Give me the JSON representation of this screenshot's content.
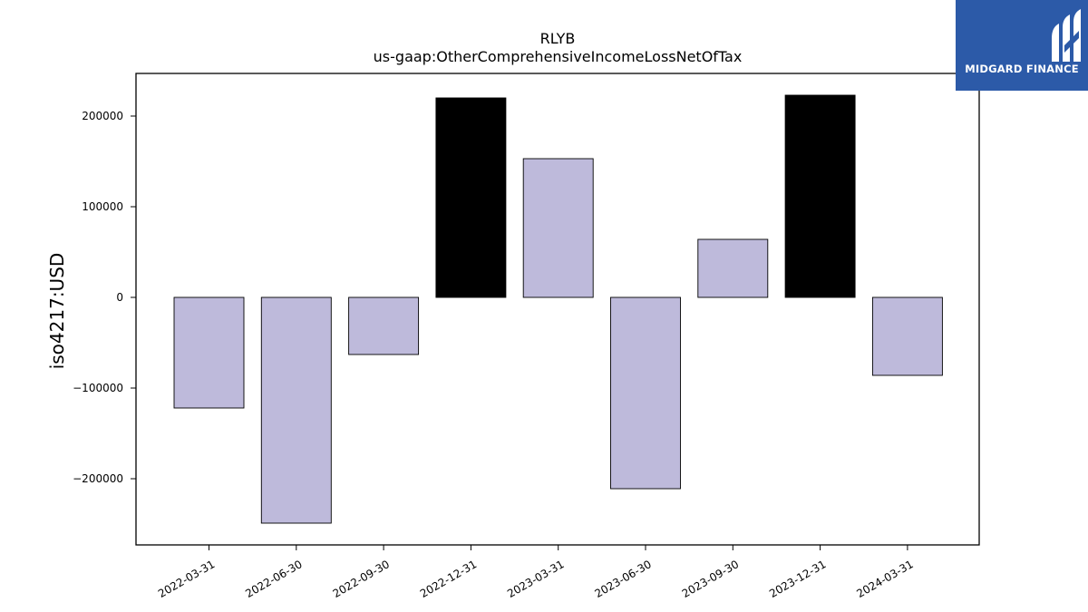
{
  "chart_data": {
    "type": "bar",
    "title": "RLYB",
    "subtitle": "us-gaap:OtherComprehensiveIncomeLossNetOfTax",
    "xlabel": "",
    "ylabel": "iso4217:USD",
    "categories": [
      "2022-03-31",
      "2022-06-30",
      "2022-09-30",
      "2022-12-31",
      "2023-03-31",
      "2023-06-30",
      "2023-09-30",
      "2023-12-31",
      "2024-03-31"
    ],
    "values": [
      -122000,
      -249000,
      -63000,
      220000,
      153000,
      -211000,
      64000,
      223000,
      -86000
    ],
    "bar_colors": [
      "#bebadb",
      "#bebadb",
      "#bebadb",
      "#000000",
      "#bebadb",
      "#bebadb",
      "#bebadb",
      "#000000",
      "#bebadb"
    ],
    "ylim": [
      -273000,
      247000
    ],
    "yticks": [
      200000,
      100000,
      0,
      -100000,
      -200000
    ],
    "ytick_labels": [
      "200000",
      "100000",
      "0",
      "−100000",
      "−200000"
    ],
    "grid": false
  },
  "logo": {
    "text": "MIDGARD FINANCE",
    "color": "#2c5aa8",
    "icon": "midgard-logo-icon"
  }
}
